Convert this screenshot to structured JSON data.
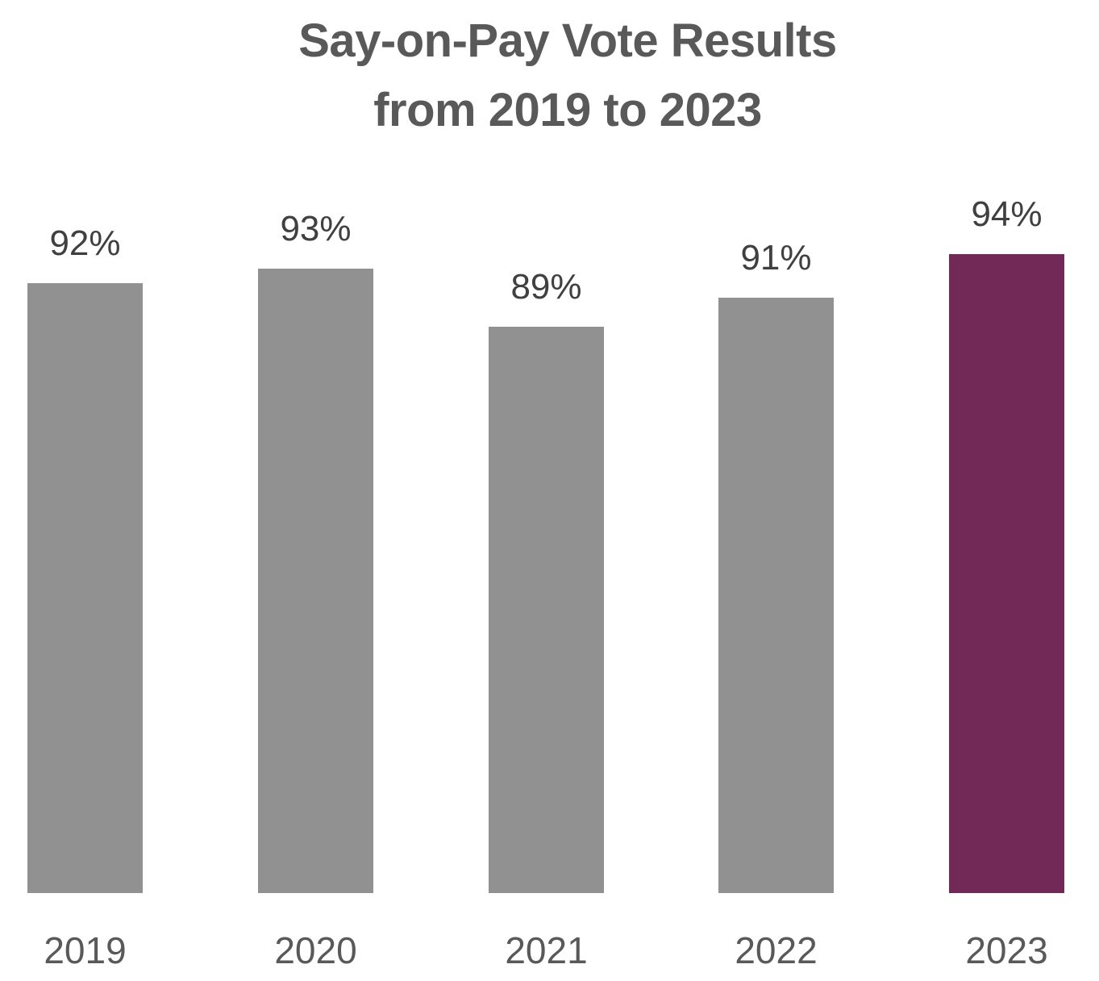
{
  "chart_data": {
    "type": "bar",
    "title": "Say-on-Pay Vote Results from 2019 to 2023",
    "title_lines": [
      "Say-on-Pay Vote Results",
      "from 2019 to 2023"
    ],
    "categories": [
      "2019",
      "2020",
      "2021",
      "2022",
      "2023"
    ],
    "values": [
      92,
      93,
      89,
      91,
      94
    ],
    "labels": [
      "92%",
      "93%",
      "89%",
      "91%",
      "94%"
    ],
    "xlabel": "",
    "ylabel": "",
    "ylim": [
      50,
      100
    ],
    "grid": false,
    "legend": null,
    "colors": [
      "#919191",
      "#919191",
      "#919191",
      "#919191",
      "#722957"
    ],
    "highlight": "2023"
  }
}
